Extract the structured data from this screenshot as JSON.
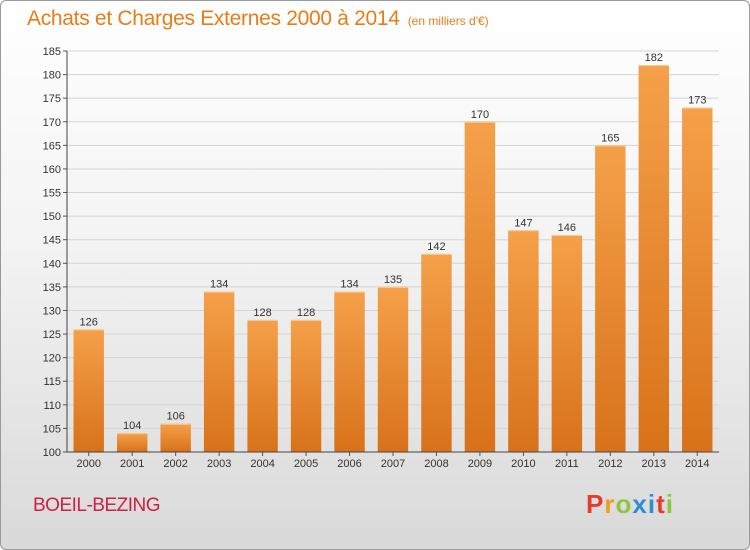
{
  "header": {
    "title": "Achats et Charges Externes 2000 à 2014",
    "subtitle": "(en milliers d'€)"
  },
  "footer": {
    "commune": "BOEIL-BEZING",
    "logo": "Proxiti",
    "logo_letter_colors": [
      "#e63b2e",
      "#f29a1e",
      "#8dc63f",
      "#2b8fd6",
      "#2b8fd6",
      "#e63b2e",
      "#8dc63f"
    ]
  },
  "chart_data": {
    "type": "bar",
    "title": "Achats et Charges Externes 2000 à 2014",
    "subtitle": "(en milliers d'€)",
    "categories": [
      "2000",
      "2001",
      "2002",
      "2003",
      "2004",
      "2005",
      "2006",
      "2007",
      "2008",
      "2009",
      "2010",
      "2011",
      "2012",
      "2013",
      "2014"
    ],
    "values": [
      126,
      104,
      106,
      134,
      128,
      128,
      134,
      135,
      142,
      170,
      147,
      146,
      165,
      182,
      173
    ],
    "ylim": [
      100,
      185
    ],
    "yticks": [
      100,
      105,
      110,
      115,
      120,
      125,
      130,
      135,
      140,
      145,
      150,
      155,
      160,
      165,
      170,
      175,
      180,
      185
    ],
    "xlabel": "",
    "ylabel": "",
    "grid": true,
    "bar_color_top": "#f5a04a",
    "bar_color_bottom": "#d8721a"
  }
}
